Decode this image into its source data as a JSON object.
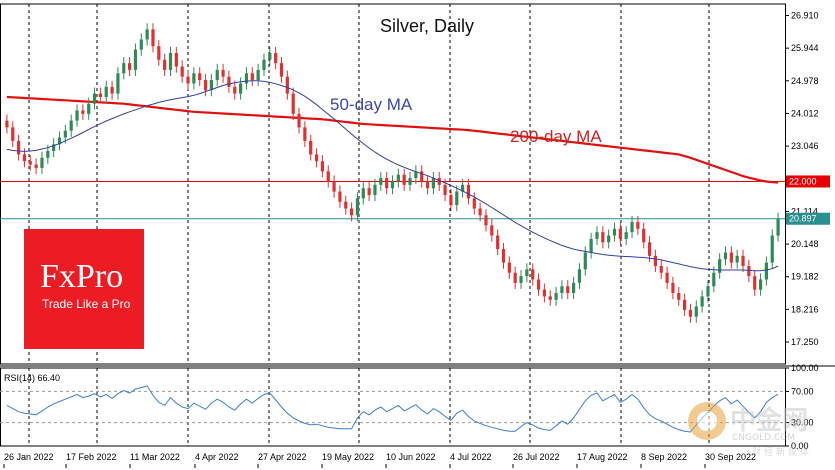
{
  "chart_data": [
    {
      "type": "candlestick",
      "title": "Silver, Daily",
      "annotations": [
        "50-day MA",
        "200-day MA"
      ],
      "y_ticks": [
        26.91,
        25.944,
        24.978,
        24.012,
        23.046,
        22.08,
        21.114,
        20.148,
        19.182,
        18.216,
        17.25
      ],
      "ylim": [
        16.6,
        27.25
      ],
      "x_ticks": [
        "26 Jan 2022",
        "17 Feb 2022",
        "11 Mar 2022",
        "4 Apr 2022",
        "27 Apr 2022",
        "19 May 2022",
        "10 Jun 2022",
        "4 Jul 2022",
        "26 Jul 2022",
        "17 Aug 2022",
        "8 Sep 2022",
        "30 Sep 2022"
      ],
      "horizontal_levels": [
        {
          "value": 22.0,
          "label": "22.000",
          "color": "#e60000"
        },
        {
          "value": 20.897,
          "label": "20.897",
          "color": "#2a8f8f"
        }
      ],
      "bull_color": "#2e8b57",
      "bear_color": "#e03030",
      "ma50_color": "#3340a0",
      "ma200_color": "#e01010",
      "close": [
        23.6,
        23.2,
        22.8,
        22.6,
        22.5,
        22.4,
        22.7,
        22.9,
        23.1,
        23.3,
        23.5,
        23.8,
        24.1,
        24.0,
        24.3,
        24.6,
        24.5,
        24.8,
        24.6,
        25.2,
        25.5,
        25.3,
        25.9,
        26.2,
        26.5,
        26.0,
        25.6,
        25.3,
        25.8,
        25.4,
        25.1,
        24.9,
        25.2,
        25.0,
        24.7,
        25.0,
        25.3,
        25.1,
        24.8,
        24.6,
        24.9,
        25.2,
        25.0,
        25.3,
        25.6,
        25.8,
        25.5,
        25.1,
        24.6,
        24.0,
        23.6,
        23.2,
        22.8,
        22.6,
        22.3,
        22.0,
        21.7,
        21.4,
        21.2,
        21.0,
        21.5,
        21.8,
        21.6,
        21.9,
        22.1,
        21.8,
        22.0,
        22.2,
        21.9,
        22.1,
        22.3,
        22.0,
        21.8,
        22.1,
        21.9,
        21.6,
        21.3,
        21.7,
        21.9,
        21.5,
        21.2,
        21.0,
        20.7,
        20.4,
        20.0,
        19.6,
        19.3,
        19.0,
        19.2,
        19.4,
        19.1,
        18.8,
        18.6,
        18.5,
        18.7,
        18.9,
        18.7,
        19.0,
        19.4,
        19.9,
        20.3,
        20.5,
        20.2,
        20.4,
        20.6,
        20.3,
        20.5,
        20.8,
        20.6,
        20.2,
        19.8,
        19.5,
        19.3,
        19.0,
        18.7,
        18.5,
        18.2,
        18.0,
        18.3,
        18.6,
        18.9,
        19.3,
        19.7,
        19.9,
        19.6,
        19.8,
        19.5,
        19.2,
        18.8,
        19.1,
        19.6,
        20.4,
        20.9
      ],
      "ma50": [
        22.95,
        22.92,
        22.9,
        22.89,
        22.9,
        22.92,
        22.96,
        23.0,
        23.06,
        23.12,
        23.2,
        23.28,
        23.36,
        23.45,
        23.54,
        23.63,
        23.71,
        23.79,
        23.86,
        23.93,
        24.0,
        24.06,
        24.12,
        24.18,
        24.24,
        24.29,
        24.34,
        24.38,
        24.42,
        24.45,
        24.48,
        24.51,
        24.55,
        24.6,
        24.66,
        24.72,
        24.78,
        24.84,
        24.89,
        24.92,
        24.95,
        24.97,
        24.98,
        24.98,
        24.96,
        24.93,
        24.89,
        24.84,
        24.78,
        24.71,
        24.62,
        24.52,
        24.4,
        24.27,
        24.13,
        23.99,
        23.85,
        23.7,
        23.55,
        23.4,
        23.26,
        23.12,
        22.99,
        22.87,
        22.76,
        22.66,
        22.57,
        22.49,
        22.42,
        22.35,
        22.29,
        22.23,
        22.17,
        22.1,
        22.03,
        21.96,
        21.88,
        21.8,
        21.72,
        21.63,
        21.54,
        21.44,
        21.34,
        21.23,
        21.12,
        21.01,
        20.9,
        20.79,
        20.69,
        20.59,
        20.5,
        20.41,
        20.33,
        20.25,
        20.18,
        20.11,
        20.05,
        20.0,
        19.96,
        19.93,
        19.9,
        19.87,
        19.84,
        19.82,
        19.8,
        19.79,
        19.78,
        19.77,
        19.76,
        19.75,
        19.73,
        19.71,
        19.68,
        19.64,
        19.6,
        19.56,
        19.52,
        19.48,
        19.45,
        19.42,
        19.4,
        19.39,
        19.38,
        19.38,
        19.38,
        19.38,
        19.38,
        19.37,
        19.36,
        19.36,
        19.38,
        19.42,
        19.5
      ],
      "ma200": [
        24.5,
        24.49,
        24.48,
        24.47,
        24.46,
        24.45,
        24.44,
        24.43,
        24.42,
        24.41,
        24.4,
        24.39,
        24.38,
        24.37,
        24.36,
        24.35,
        24.34,
        24.33,
        24.32,
        24.31,
        24.3,
        24.28,
        24.26,
        24.24,
        24.22,
        24.2,
        24.18,
        24.16,
        24.14,
        24.12,
        24.1,
        24.08,
        24.06,
        24.05,
        24.04,
        24.03,
        24.02,
        24.01,
        24.0,
        23.99,
        23.98,
        23.97,
        23.96,
        23.95,
        23.94,
        23.93,
        23.92,
        23.91,
        23.9,
        23.89,
        23.88,
        23.87,
        23.86,
        23.85,
        23.84,
        23.82,
        23.8,
        23.78,
        23.76,
        23.74,
        23.72,
        23.7,
        23.69,
        23.68,
        23.67,
        23.66,
        23.65,
        23.64,
        23.63,
        23.62,
        23.61,
        23.6,
        23.59,
        23.58,
        23.57,
        23.56,
        23.55,
        23.54,
        23.53,
        23.52,
        23.5,
        23.48,
        23.46,
        23.44,
        23.42,
        23.4,
        23.38,
        23.36,
        23.34,
        23.32,
        23.3,
        23.28,
        23.26,
        23.24,
        23.22,
        23.2,
        23.18,
        23.16,
        23.14,
        23.12,
        23.1,
        23.08,
        23.06,
        23.04,
        23.02,
        23.0,
        22.98,
        22.96,
        22.94,
        22.92,
        22.9,
        22.88,
        22.86,
        22.84,
        22.82,
        22.8,
        22.75,
        22.7,
        22.64,
        22.58,
        22.52,
        22.46,
        22.4,
        22.34,
        22.28,
        22.22,
        22.16,
        22.11,
        22.07,
        22.03,
        22.0,
        21.98,
        21.97
      ]
    },
    {
      "type": "line",
      "title": "RSI(14) 66.40",
      "y_ticks": [
        100.0,
        70.0,
        30.0,
        0.0
      ],
      "ylim": [
        0,
        100
      ],
      "levels": [
        70,
        30
      ],
      "color": "#3d7fd0",
      "values": [
        52,
        48,
        44,
        42,
        41,
        40,
        45,
        50,
        54,
        57,
        60,
        63,
        66,
        62,
        64,
        67,
        63,
        66,
        61,
        67,
        71,
        68,
        73,
        75,
        77,
        65,
        56,
        52,
        62,
        55,
        50,
        48,
        55,
        51,
        47,
        55,
        60,
        56,
        50,
        46,
        54,
        60,
        55,
        61,
        66,
        68,
        59,
        50,
        42,
        36,
        32,
        29,
        27,
        28,
        26,
        24,
        23,
        22,
        22,
        22,
        36,
        44,
        40,
        46,
        50,
        44,
        48,
        52,
        45,
        49,
        53,
        46,
        41,
        48,
        44,
        38,
        33,
        42,
        46,
        38,
        32,
        29,
        26,
        24,
        22,
        20,
        19,
        19,
        25,
        30,
        27,
        23,
        21,
        20,
        26,
        32,
        28,
        36,
        47,
        58,
        65,
        68,
        58,
        62,
        66,
        56,
        60,
        66,
        60,
        49,
        40,
        35,
        32,
        28,
        24,
        21,
        19,
        18,
        27,
        36,
        43,
        51,
        58,
        62,
        54,
        59,
        51,
        43,
        36,
        44,
        56,
        62,
        66.4
      ]
    }
  ],
  "branding": {
    "logo_name": "FxPro",
    "logo_tagline": "Trade Like a Pro",
    "watermark_cn": "中金网",
    "watermark_site": "CNGOLD.COM",
    "watermark_sub": "财经新媒体"
  }
}
